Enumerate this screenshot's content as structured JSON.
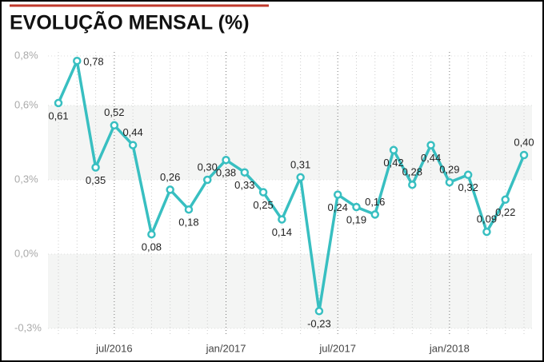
{
  "chart_data": {
    "type": "line",
    "title": "EVOLUÇÃO MENSAL (%)",
    "categories": [
      null,
      null,
      null,
      "jul/2016",
      null,
      null,
      null,
      null,
      null,
      "jan/2017",
      null,
      null,
      null,
      null,
      null,
      "jul/2017",
      null,
      null,
      null,
      null,
      null,
      "jan/2018",
      null,
      null,
      null,
      null
    ],
    "series": [
      {
        "name": "Evolução mensal",
        "color": "#38bfc1",
        "values": [
          0.61,
          0.78,
          0.35,
          0.52,
          0.44,
          0.08,
          0.26,
          0.18,
          0.3,
          0.38,
          0.33,
          0.25,
          0.14,
          0.31,
          -0.23,
          0.24,
          0.19,
          0.16,
          0.42,
          0.28,
          0.44,
          0.29,
          0.32,
          0.09,
          0.22,
          0.4
        ],
        "value_labels": [
          "0,61",
          "0,78",
          "0,35",
          "0,52",
          "0,44",
          "0,08",
          "0,26",
          "0,18",
          "0,30",
          "0,38",
          "0,33",
          "0,25",
          "0,14",
          "0,31",
          "-0,23",
          "0,24",
          "0,19",
          "0,16",
          "0,42",
          "0,28",
          "0,44",
          "0,29",
          "0,32",
          "0,09",
          "0,22",
          "0,40"
        ]
      }
    ],
    "ylim": [
      -0.3,
      0.8
    ],
    "yticks": [
      {
        "value": -0.3,
        "label": "-0,3%"
      },
      {
        "value": 0.0,
        "label": "0,0%"
      },
      {
        "value": 0.3,
        "label": "0,3%"
      },
      {
        "value": 0.6,
        "label": "0,6%"
      },
      {
        "value": 0.8,
        "label": "0,8%"
      }
    ],
    "grid": true
  }
}
